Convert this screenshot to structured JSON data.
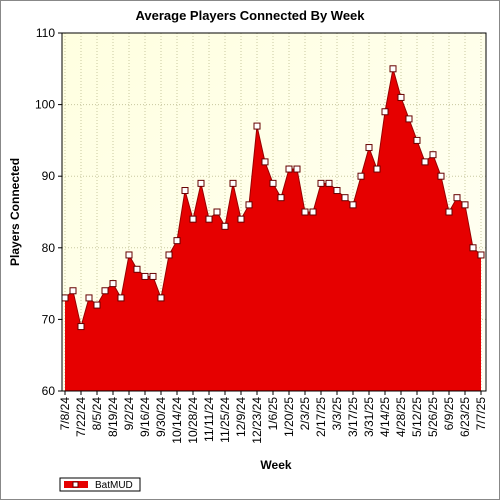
{
  "chart_data": {
    "type": "area",
    "title": "Average Players Connected By Week",
    "x_label": "Week",
    "y_label": "Players Connected",
    "categories": [
      "7/8/24",
      null,
      "7/22/24",
      null,
      "8/5/24",
      null,
      "8/19/24",
      null,
      "9/2/24",
      null,
      "9/16/24",
      null,
      "9/30/24",
      null,
      "10/14/24",
      null,
      "10/28/24",
      null,
      "11/11/24",
      null,
      "11/25/24",
      null,
      "12/9/24",
      null,
      "12/23/24",
      null,
      "1/6/25",
      null,
      "1/20/25",
      null,
      "2/3/25",
      null,
      "2/17/25",
      null,
      "3/3/25",
      null,
      "3/17/25",
      null,
      "3/31/25",
      null,
      "4/14/25",
      null,
      "4/28/25",
      null,
      "5/12/25",
      null,
      "5/26/25",
      null,
      "6/9/25",
      null,
      "6/23/25",
      null,
      "7/7/25"
    ],
    "series": [
      {
        "name": "BatMUD",
        "color": "#e60000",
        "values": [
          73,
          74,
          69,
          73,
          72,
          74,
          75,
          73,
          79,
          77,
          76,
          76,
          73,
          79,
          81,
          88,
          84,
          89,
          84,
          85,
          83,
          89,
          84,
          86,
          97,
          92,
          89,
          87,
          91,
          91,
          85,
          85,
          89,
          89,
          88,
          87,
          86,
          90,
          94,
          91,
          99,
          105,
          101,
          98,
          95,
          92,
          93,
          90,
          85,
          87,
          86,
          80,
          79
        ]
      }
    ],
    "ylim": [
      60,
      110
    ],
    "yticks": [
      60,
      70,
      80,
      90,
      100,
      110
    ],
    "grid": true,
    "legend": "bottom-left"
  }
}
